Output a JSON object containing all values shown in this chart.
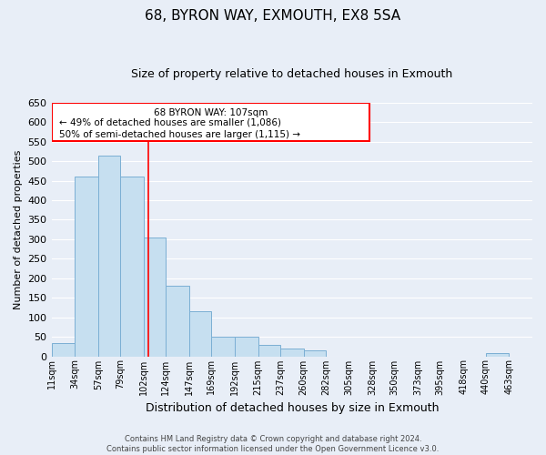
{
  "title": "68, BYRON WAY, EXMOUTH, EX8 5SA",
  "subtitle": "Size of property relative to detached houses in Exmouth",
  "xlabel": "Distribution of detached houses by size in Exmouth",
  "ylabel": "Number of detached properties",
  "bin_labels": [
    "11sqm",
    "34sqm",
    "57sqm",
    "79sqm",
    "102sqm",
    "124sqm",
    "147sqm",
    "169sqm",
    "192sqm",
    "215sqm",
    "237sqm",
    "260sqm",
    "282sqm",
    "305sqm",
    "328sqm",
    "350sqm",
    "373sqm",
    "395sqm",
    "418sqm",
    "440sqm",
    "463sqm"
  ],
  "bin_edges": [
    11,
    34,
    57,
    79,
    102,
    124,
    147,
    169,
    192,
    215,
    237,
    260,
    282,
    305,
    328,
    350,
    373,
    395,
    418,
    440,
    463
  ],
  "bar_heights": [
    35,
    460,
    515,
    460,
    305,
    180,
    115,
    50,
    50,
    30,
    20,
    15,
    0,
    0,
    0,
    0,
    0,
    0,
    0,
    8
  ],
  "bar_color": "#c6dff0",
  "bar_edge_color": "#7bafd4",
  "red_line_x": 107,
  "ylim": [
    0,
    650
  ],
  "yticks": [
    0,
    50,
    100,
    150,
    200,
    250,
    300,
    350,
    400,
    450,
    500,
    550,
    600,
    650
  ],
  "annotation_line1": "68 BYRON WAY: 107sqm",
  "annotation_line2": "← 49% of detached houses are smaller (1,086)",
  "annotation_line3": "50% of semi-detached houses are larger (1,115) →",
  "footer_text": "Contains HM Land Registry data © Crown copyright and database right 2024.\nContains public sector information licensed under the Open Government Licence v3.0.",
  "background_color": "#e8eef7",
  "grid_color": "#ffffff",
  "title_fontsize": 11,
  "subtitle_fontsize": 9
}
